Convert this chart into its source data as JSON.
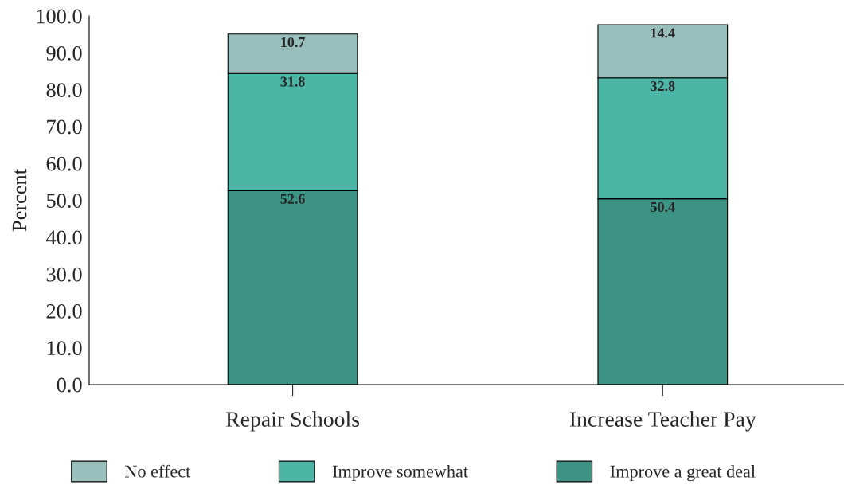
{
  "chart_data": {
    "type": "bar",
    "ylabel": "Percent",
    "stacked": true,
    "categories": [
      "Repair Schools",
      "Increase Teacher Pay"
    ],
    "series": [
      {
        "name": "Improve a great deal",
        "color": "#3e9484",
        "values": [
          52.6,
          50.4
        ]
      },
      {
        "name": "Improve somewhat",
        "color": "#4bb5a6",
        "values": [
          31.8,
          32.8
        ]
      },
      {
        "name": "No effect",
        "color": "#98bfbc",
        "values": [
          10.7,
          14.4
        ]
      }
    ],
    "ylim": [
      0,
      100
    ],
    "yticks": [
      {
        "value": 0,
        "label": "0.0"
      },
      {
        "value": 10,
        "label": "10.0"
      },
      {
        "value": 20,
        "label": "20.0"
      },
      {
        "value": 30,
        "label": "30.0"
      },
      {
        "value": 40,
        "label": "40.0"
      },
      {
        "value": 50,
        "label": "50.0"
      },
      {
        "value": 60,
        "label": "60.0"
      },
      {
        "value": 70,
        "label": "70.0"
      },
      {
        "value": 80,
        "label": "80.0"
      },
      {
        "value": 90,
        "label": "90.0"
      },
      {
        "value": 100,
        "label": "100.0"
      }
    ],
    "data_labels": true,
    "grid": false,
    "legend": "bottom"
  }
}
